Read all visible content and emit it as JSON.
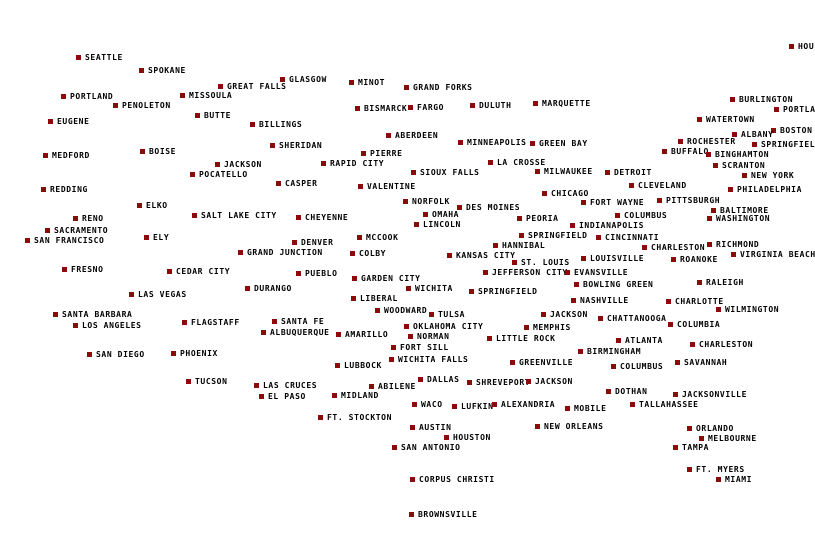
{
  "marker_color": "#8b0a0a",
  "cities": [
    "SEATTLE",
    "SPOKANE",
    "GLASGOW",
    "MINOT",
    "GRAND FORKS",
    "GREAT FALLS",
    "PORTLAND",
    "MISSOULA",
    "PENOLETON",
    "BISMARCK",
    "FARGO",
    "DULUTH",
    "MARQUETTE",
    "BUTTE",
    "EUGENE",
    "BILLINGS",
    "ABERDEEN",
    "MINNEAPOLIS",
    "GREEN BAY",
    "SHERIDAN",
    "MEDFORD",
    "BOISE",
    "PIERRE",
    "RAPID CITY",
    "JACKSON",
    "LA CROSSE",
    "POCATELLO",
    "SIOUX FALLS",
    "MILWAUKEE",
    "DETROIT",
    "CASPER",
    "VALENTINE",
    "REDDING",
    "CLEVELAND",
    "CHICAGO",
    "NORFOLK",
    "FORT WAYNE",
    "PITTSBURGH",
    "ELKO",
    "DES MOINES",
    "BALTIMORE",
    "OMAHA",
    "SALT LAKE CITY",
    "CHEYENNE",
    "PEORIA",
    "COLUMBUS",
    "WASHINGTON",
    "RENO",
    "LINCOLN",
    "SACRAMENTO",
    "INDIANAPOLIS",
    "SAN FRANCISCO",
    "ELY",
    "MCCOOK",
    "SPRINGFIELD",
    "HANNIBAL",
    "CINCINNATI",
    "DENVER",
    "CHARLESTON",
    "RICHMOND",
    "GRAND JUNCTION",
    "COLBY",
    "VIRGINIA BEACH",
    "KANSAS CITY",
    "ST. LOUIS",
    "JEFFERSON CITY",
    "LOUISVILLE",
    "ROANOKE",
    "EVANSVILLE",
    "FRESNO",
    "CEDAR CITY",
    "PUEBLO",
    "GARDEN CITY",
    "WICHITA",
    "BOWLING GREEN",
    "RALEIGH",
    "DURANGO",
    "SPRINGFIELD",
    "LAS VEGAS",
    "LIBERAL",
    "NASHVILLE",
    "CHARLOTTE",
    "WOODWARD",
    "SANTA BARBARA",
    "TULSA",
    "JACKSON",
    "WILMINGTON",
    "CHATTANOOGA",
    "FLAGSTAFF",
    "SANTA FE",
    "LOS ANGELES",
    "COLUMBIA",
    "OKLAHOMA CITY",
    "MEMPHIS",
    "NORMAN",
    "ALBUQUERQUE",
    "AMARILLO",
    "LITTLE ROCK",
    "ATLANTA",
    "FORT SILL",
    "CHARLESTON",
    "BIRMINGHAM",
    "SAN DIEGO",
    "PHOENIX",
    "WICHITA FALLS",
    "GREENVILLE",
    "COLUMBUS",
    "SAVANNAH",
    "LUBBOCK",
    "DALLAS",
    "TUCSON",
    "SHREVEPORT",
    "JACKSON",
    "LAS CRUCES",
    "ABILENE",
    "DOTHAN",
    "EL PASO",
    "MIDLAND",
    "JACKSONVILLE",
    "WACO",
    "LUFKIN",
    "ALEXANDRIA",
    "TALLAHASSEE",
    "MOBILE",
    "FT. STOCKTON",
    "AUSTIN",
    "NEW ORLEANS",
    "ORLANDO",
    "HOUSTON",
    "MELBOURNE",
    "SAN ANTONIO",
    "TAMPA",
    "FT. MYERS",
    "MIAMI",
    "CORPUS CHRISTI",
    "BROWNSVILLE",
    "HOULTON",
    "BURLINGTON",
    "PORTLAND",
    "WATERTOWN",
    "BOSTON",
    "ALBANY",
    "ROCHESTER",
    "SPRINGFIELD",
    "BUFFALO",
    "BINGHAMTON",
    "SCRANTON",
    "NEW YORK",
    "PHILADELPHIA"
  ]
}
